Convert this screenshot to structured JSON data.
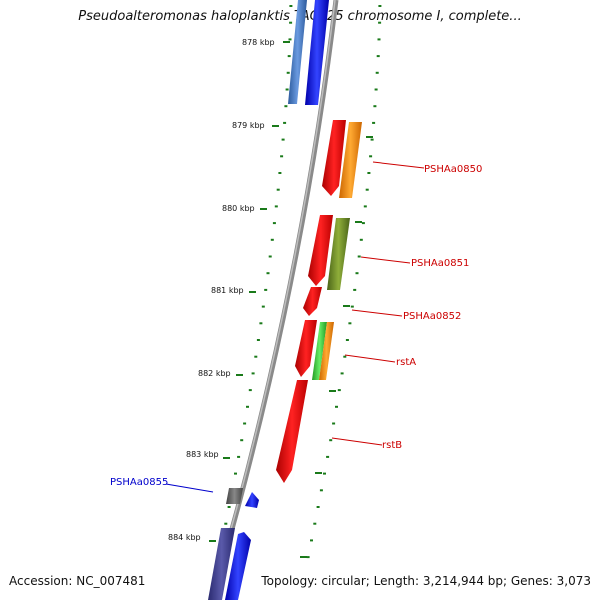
{
  "title": "Pseudoalteromonas haloplanktis TAC125 chromosome I, complete...",
  "accession": "Accession: NC_007481",
  "topology": "Topology: circular; Length: 3,214,944 bp; Genes: 3,073",
  "ticks": [
    "878 kbp",
    "879 kbp",
    "880 kbp",
    "881 kbp",
    "882 kbp",
    "883 kbp",
    "884 kbp"
  ],
  "gene_labels": [
    "PSHAa0850",
    "PSHAa0851",
    "PSHAa0852",
    "rstA",
    "rstB",
    "PSHAa0855"
  ],
  "colors": {
    "backbone": "#8a8a8a",
    "tick": "#1a7a1a",
    "label_red": "#cc0000",
    "label_blue": "#0000cc",
    "red": "#ee1111",
    "orange": "#ff8800",
    "olive": "#6b8e23",
    "green": "#33cc33",
    "blue": "#1111ee",
    "steel": "#4a78c0",
    "navy": "#3c3c8c",
    "gray": "#666666"
  }
}
